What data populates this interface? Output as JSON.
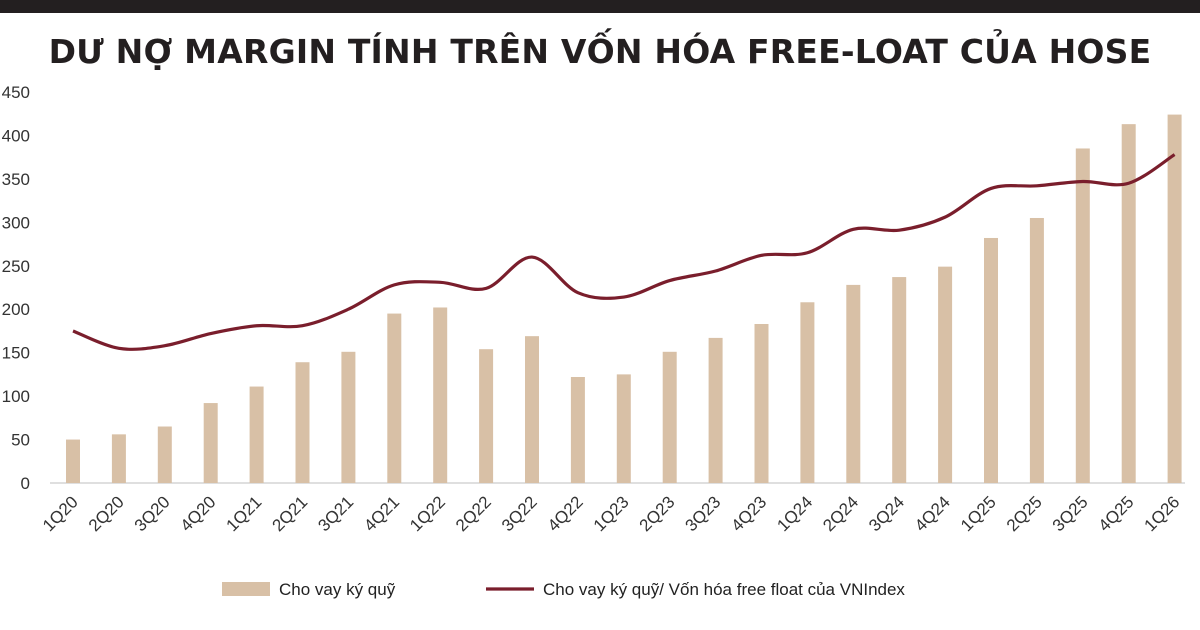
{
  "title": "DƯ NỢ MARGIN TÍNH TRÊN VỐN HÓA FREE-LOAT CỦA HOSE",
  "chart_data": {
    "type": "bar",
    "title": "DƯ NỢ MARGIN TÍNH TRÊN VỐN HÓA FREE-LOAT CỦA HOSE",
    "categories": [
      "1Q20",
      "2Q20",
      "3Q20",
      "4Q20",
      "1Q21",
      "2Q21",
      "3Q21",
      "4Q21",
      "1Q22",
      "2Q22",
      "3Q22",
      "4Q22",
      "1Q23",
      "2Q23",
      "3Q23",
      "4Q23",
      "1Q24",
      "2Q24",
      "3Q24",
      "4Q24",
      "1Q25",
      "2Q25",
      "3Q25",
      "4Q25",
      "1Q26"
    ],
    "y_ticks": [
      0,
      50,
      100,
      150,
      200,
      250,
      300,
      350,
      400,
      450
    ],
    "ylim": [
      0,
      450
    ],
    "grid": false,
    "legend_position": "bottom",
    "series": [
      {
        "name": "Cho vay ký quỹ",
        "type": "bar",
        "color": "#d8c0a6",
        "values": [
          50,
          56,
          65,
          92,
          111,
          139,
          151,
          195,
          202,
          154,
          169,
          122,
          125,
          151,
          167,
          183,
          208,
          228,
          237,
          249,
          282,
          305,
          385,
          413,
          424
        ]
      },
      {
        "name": "Cho vay ký quỹ/ Vốn hóa free float của VNIndex",
        "type": "line",
        "color": "#7a1e2c",
        "values": [
          175,
          155,
          158,
          172,
          181,
          181,
          200,
          228,
          231,
          224,
          260,
          219,
          214,
          233,
          244,
          262,
          265,
          292,
          291,
          306,
          339,
          342,
          347,
          345,
          378
        ]
      }
    ]
  }
}
